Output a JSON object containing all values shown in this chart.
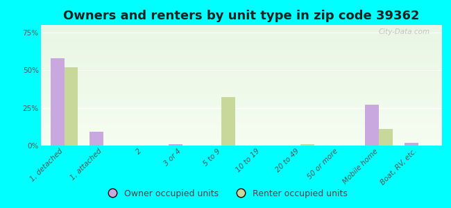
{
  "title": "Owners and renters by unit type in zip code 39362",
  "categories": [
    "1, detached",
    "1, attached",
    "2",
    "3 or 4",
    "5 to 9",
    "10 to 19",
    "20 to 49",
    "50 or more",
    "Mobile home",
    "Boat, RV, etc."
  ],
  "owner_values": [
    58,
    9,
    0,
    1,
    0,
    0,
    0,
    0,
    27,
    2
  ],
  "renter_values": [
    52,
    0,
    0,
    0,
    32,
    0,
    1,
    0,
    11,
    0
  ],
  "owner_color": "#c9a8e0",
  "renter_color": "#c8d89a",
  "background_color": "#00ffff",
  "plot_bg_top": "#e8f5e4",
  "plot_bg_bottom": "#f5fdf0",
  "yticks": [
    0,
    25,
    50,
    75
  ],
  "ylim": [
    0,
    80
  ],
  "legend_owner": "Owner occupied units",
  "legend_renter": "Renter occupied units",
  "watermark": "City-Data.com",
  "title_fontsize": 13,
  "tick_fontsize": 7.5,
  "legend_fontsize": 9,
  "bar_width": 0.35
}
